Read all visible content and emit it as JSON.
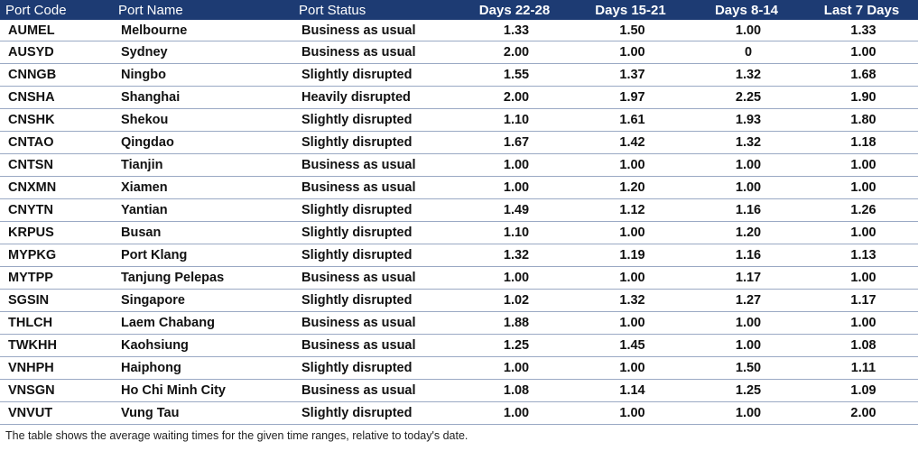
{
  "table": {
    "headers": [
      "Port Code",
      "Port Name",
      "Port Status",
      "Days 22-28",
      "Days 15-21",
      "Days 8-14",
      "Last 7 Days"
    ],
    "rows": [
      [
        "AUMEL",
        "Melbourne",
        "Business as usual",
        "1.33",
        "1.50",
        "1.00",
        "1.33"
      ],
      [
        "AUSYD",
        "Sydney",
        "Business as usual",
        "2.00",
        "1.00",
        "0",
        "1.00"
      ],
      [
        "CNNGB",
        "Ningbo",
        "Slightly disrupted",
        "1.55",
        "1.37",
        "1.32",
        "1.68"
      ],
      [
        "CNSHA",
        "Shanghai",
        "Heavily disrupted",
        "2.00",
        "1.97",
        "2.25",
        "1.90"
      ],
      [
        "CNSHK",
        "Shekou",
        "Slightly disrupted",
        "1.10",
        "1.61",
        "1.93",
        "1.80"
      ],
      [
        "CNTAO",
        "Qingdao",
        "Slightly disrupted",
        "1.67",
        "1.42",
        "1.32",
        "1.18"
      ],
      [
        "CNTSN",
        "Tianjin",
        "Business as usual",
        "1.00",
        "1.00",
        "1.00",
        "1.00"
      ],
      [
        "CNXMN",
        "Xiamen",
        "Business as usual",
        "1.00",
        "1.20",
        "1.00",
        "1.00"
      ],
      [
        "CNYTN",
        "Yantian",
        "Slightly disrupted",
        "1.49",
        "1.12",
        "1.16",
        "1.26"
      ],
      [
        "KRPUS",
        "Busan",
        "Slightly disrupted",
        "1.10",
        "1.00",
        "1.20",
        "1.00"
      ],
      [
        "MYPKG",
        "Port Klang",
        "Slightly disrupted",
        "1.32",
        "1.19",
        "1.16",
        "1.13"
      ],
      [
        "MYTPP",
        "Tanjung Pelepas",
        "Business as usual",
        "1.00",
        "1.00",
        "1.17",
        "1.00"
      ],
      [
        "SGSIN",
        "Singapore",
        "Slightly disrupted",
        "1.02",
        "1.32",
        "1.27",
        "1.17"
      ],
      [
        "THLCH",
        "Laem Chabang",
        "Business as usual",
        "1.88",
        "1.00",
        "1.00",
        "1.00"
      ],
      [
        "TWKHH",
        "Kaohsiung",
        "Business as usual",
        "1.25",
        "1.45",
        "1.00",
        "1.08"
      ],
      [
        "VNHPH",
        "Haiphong",
        "Slightly disrupted",
        "1.00",
        "1.00",
        "1.50",
        "1.11"
      ],
      [
        "VNSGN",
        "Ho Chi Minh City",
        "Business as usual",
        "1.08",
        "1.14",
        "1.25",
        "1.09"
      ],
      [
        "VNVUT",
        "Vung Tau",
        "Slightly disrupted",
        "1.00",
        "1.00",
        "1.00",
        "2.00"
      ]
    ]
  },
  "footnote": "The table shows the average waiting times for the given time ranges, relative to today's date.",
  "colors": {
    "header_background": "#1d3b73",
    "header_text": "#ffffff",
    "row_divider": "#9aa9c4"
  }
}
